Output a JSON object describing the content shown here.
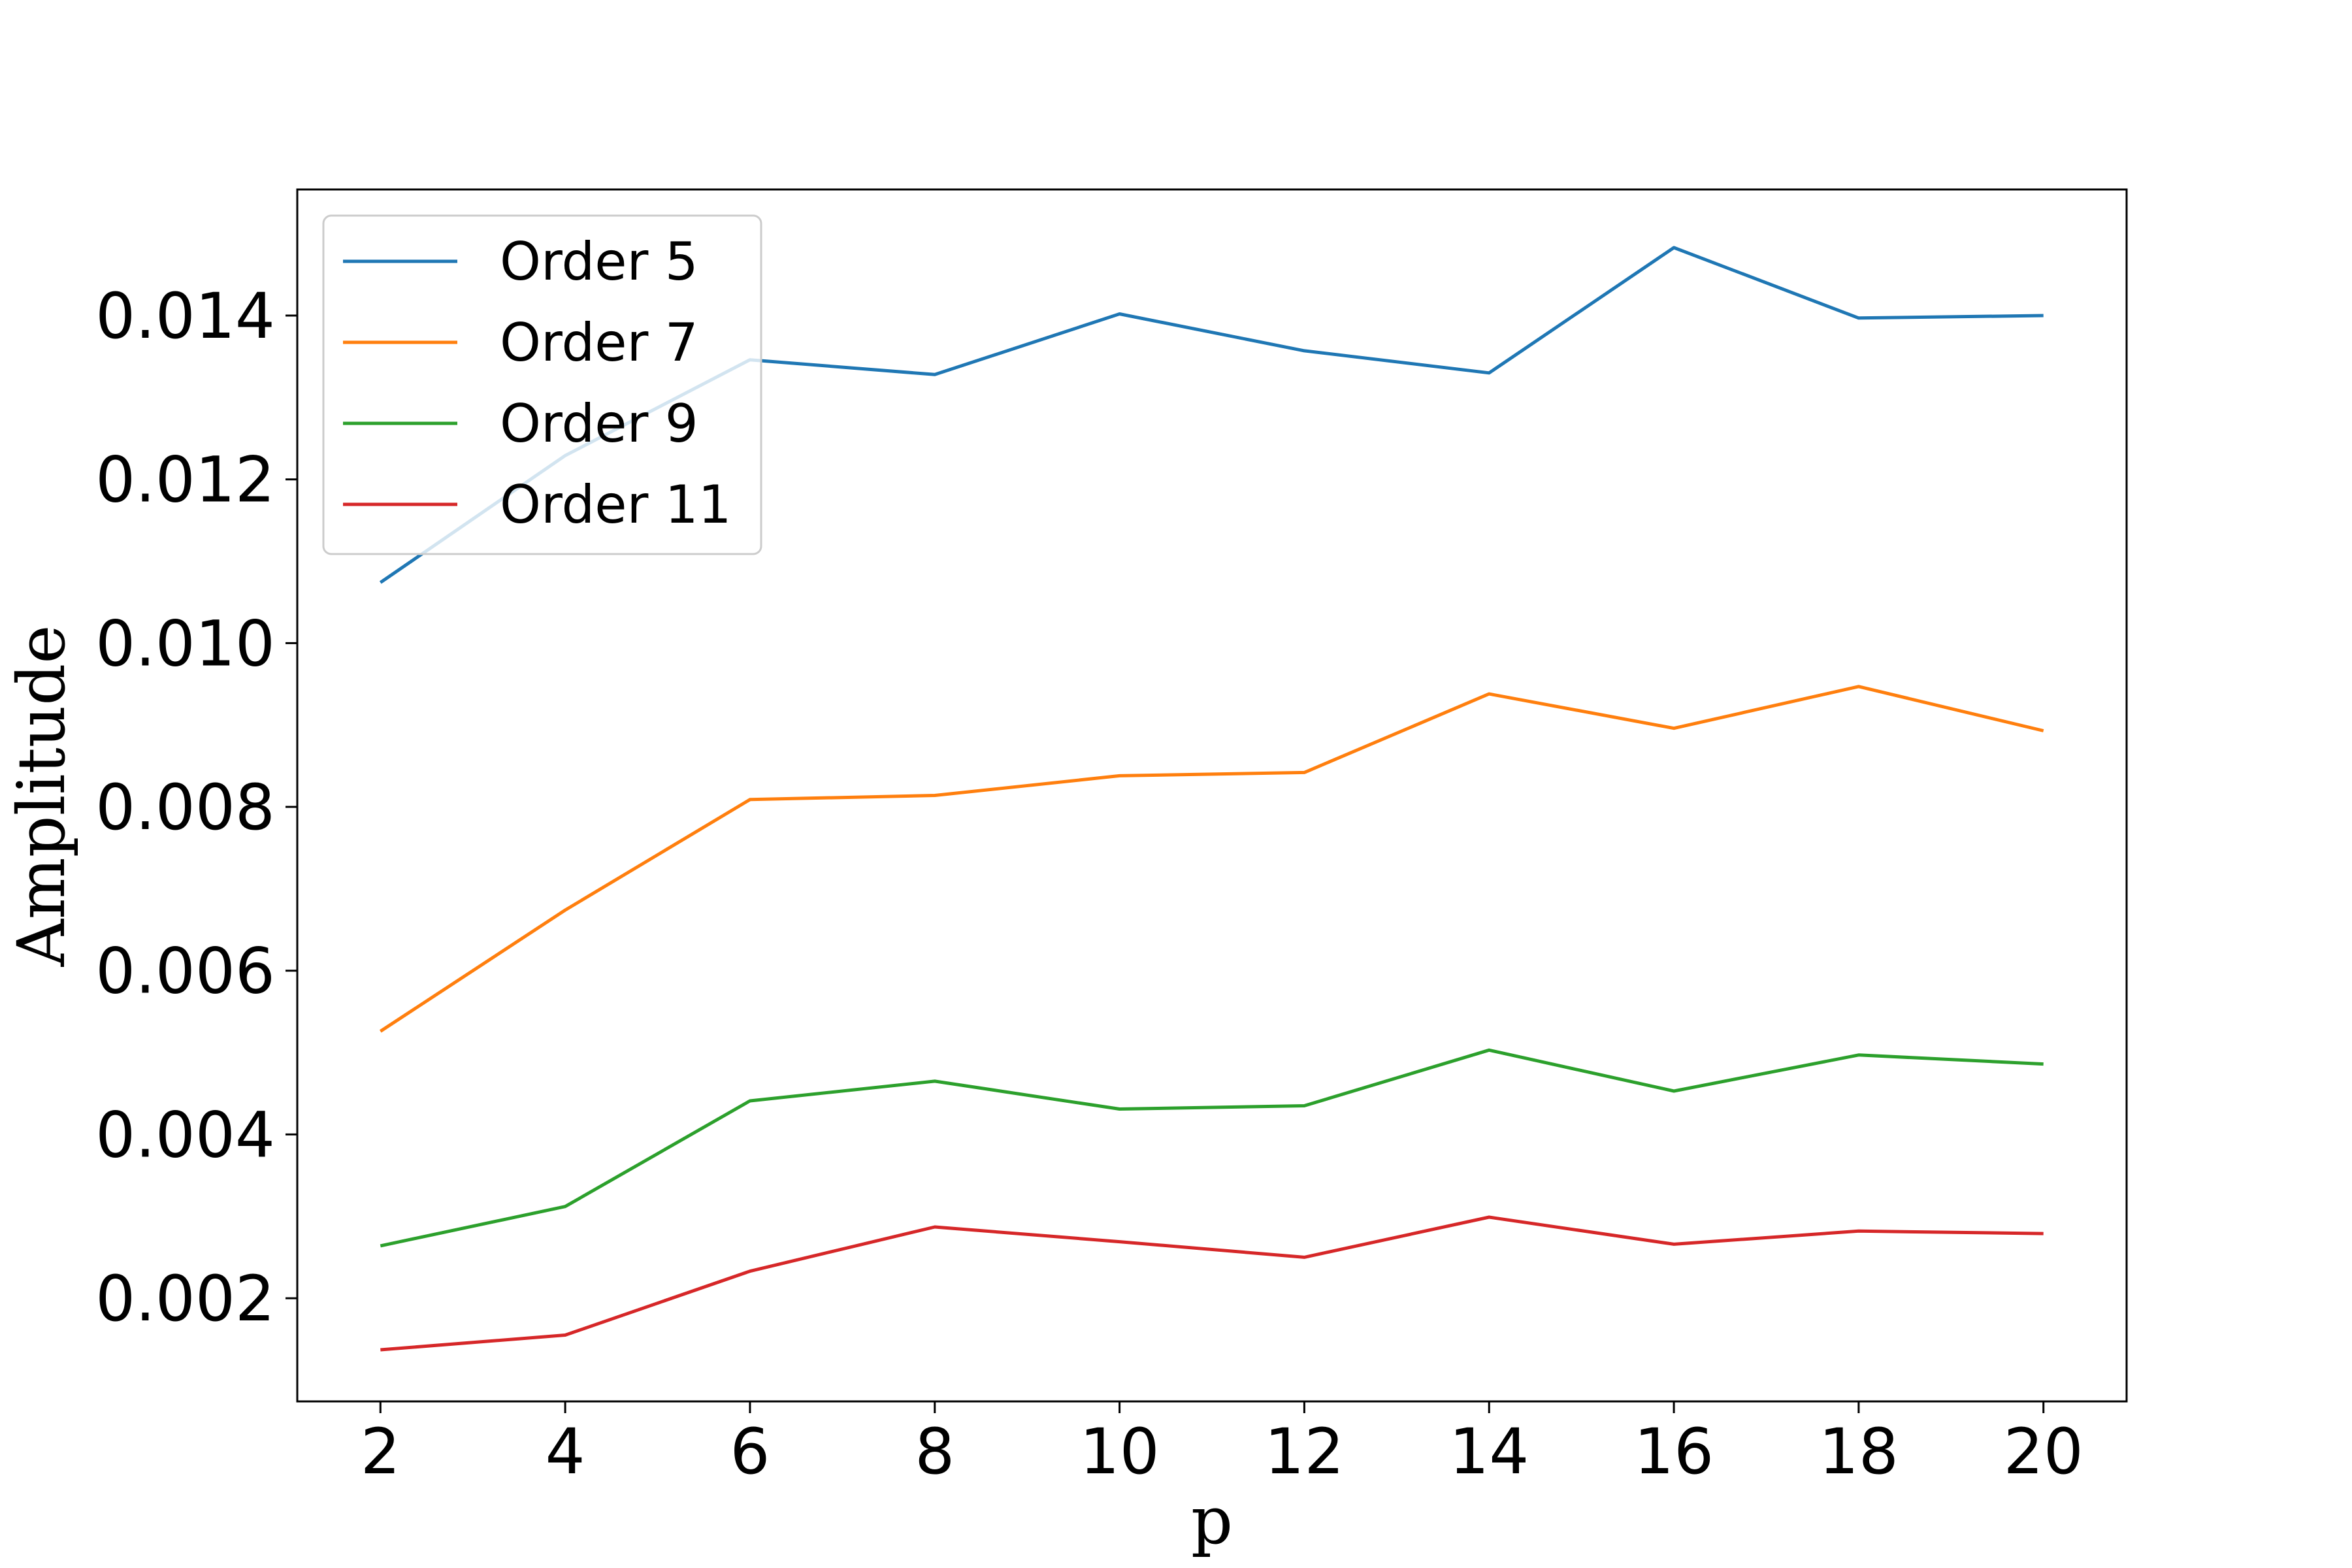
{
  "chart_data": {
    "type": "line",
    "xlabel": "p",
    "ylabel": "Amplitude",
    "x": [
      2,
      4,
      6,
      8,
      10,
      12,
      14,
      16,
      18,
      20
    ],
    "xticks": [
      "2",
      "4",
      "6",
      "8",
      "10",
      "12",
      "14",
      "16",
      "18",
      "20"
    ],
    "yticks": [
      "0.002",
      "0.004",
      "0.006",
      "0.008",
      "0.010",
      "0.012",
      "0.014"
    ],
    "xlim": [
      1.1,
      20.9
    ],
    "ylim": [
      0.00074,
      0.01554
    ],
    "grid": false,
    "legend": "upper left",
    "series": [
      {
        "name": "Order 5",
        "color": "#1f77b4",
        "values": [
          0.01074,
          0.01229,
          0.01346,
          0.01328,
          0.01402,
          0.01357,
          0.0133,
          0.01483,
          0.01397,
          0.014
        ]
      },
      {
        "name": "Order 7",
        "color": "#ff7f0e",
        "values": [
          0.00526,
          0.00674,
          0.00809,
          0.00814,
          0.00838,
          0.00842,
          0.00938,
          0.00896,
          0.00947,
          0.00893
        ]
      },
      {
        "name": "Order 9",
        "color": "#2ca02c",
        "values": [
          0.00264,
          0.00312,
          0.00441,
          0.00465,
          0.00431,
          0.00435,
          0.00503,
          0.00453,
          0.00497,
          0.00486
        ]
      },
      {
        "name": "Order 11",
        "color": "#d62728",
        "values": [
          0.00137,
          0.00155,
          0.00233,
          0.00287,
          0.00269,
          0.0025,
          0.00299,
          0.00266,
          0.00282,
          0.00279
        ]
      }
    ]
  }
}
